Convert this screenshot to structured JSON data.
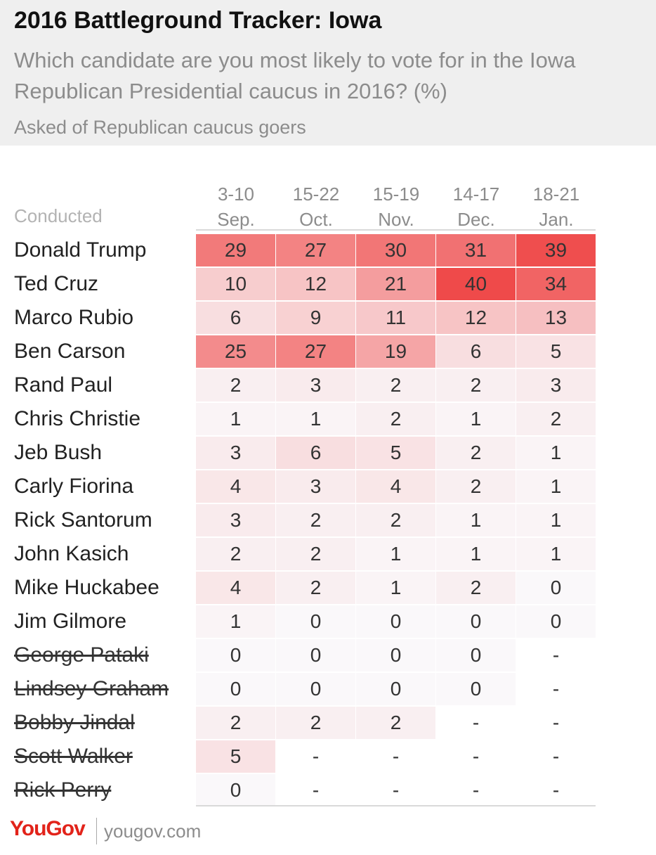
{
  "title": "2016 Battleground Tracker: Iowa",
  "subtitle": "Which candidate are you most likely to vote for in the Iowa Republican Presidential caucus in 2016? (%)",
  "note": "Asked of Republican caucus goers",
  "conducted_label": "Conducted",
  "logo": "YouGov",
  "site": "yougov.com",
  "colors": {
    "heat": "#ef4a4a",
    "header_bg": "#efefef",
    "brand": "#e2231a"
  },
  "chart_data": {
    "type": "heatmap",
    "title": "2016 Battleground Tracker: Iowa",
    "columns": [
      {
        "dates": "3-10",
        "month": "Sep."
      },
      {
        "dates": "15-22",
        "month": "Oct."
      },
      {
        "dates": "15-19",
        "month": "Nov."
      },
      {
        "dates": "14-17",
        "month": "Dec."
      },
      {
        "dates": "18-21",
        "month": "Jan."
      }
    ],
    "rows": [
      {
        "name": "Donald Trump",
        "dropped_out": false,
        "values": [
          29,
          27,
          30,
          31,
          39
        ]
      },
      {
        "name": "Ted Cruz",
        "dropped_out": false,
        "values": [
          10,
          12,
          21,
          40,
          34
        ]
      },
      {
        "name": "Marco Rubio",
        "dropped_out": false,
        "values": [
          6,
          9,
          11,
          12,
          13
        ]
      },
      {
        "name": "Ben Carson",
        "dropped_out": false,
        "values": [
          25,
          27,
          19,
          6,
          5
        ]
      },
      {
        "name": "Rand Paul",
        "dropped_out": false,
        "values": [
          2,
          3,
          2,
          2,
          3
        ]
      },
      {
        "name": "Chris Christie",
        "dropped_out": false,
        "values": [
          1,
          1,
          2,
          1,
          2
        ]
      },
      {
        "name": "Jeb Bush",
        "dropped_out": false,
        "values": [
          3,
          6,
          5,
          2,
          1
        ]
      },
      {
        "name": "Carly Fiorina",
        "dropped_out": false,
        "values": [
          4,
          3,
          4,
          2,
          1
        ]
      },
      {
        "name": "Rick Santorum",
        "dropped_out": false,
        "values": [
          3,
          2,
          2,
          1,
          1
        ]
      },
      {
        "name": "John Kasich",
        "dropped_out": false,
        "values": [
          2,
          2,
          1,
          1,
          1
        ]
      },
      {
        "name": "Mike Huckabee",
        "dropped_out": false,
        "values": [
          4,
          2,
          1,
          2,
          0
        ]
      },
      {
        "name": "Jim Gilmore",
        "dropped_out": false,
        "values": [
          1,
          0,
          0,
          0,
          0
        ]
      },
      {
        "name": "George Pataki",
        "dropped_out": true,
        "values": [
          0,
          0,
          0,
          0,
          "-"
        ]
      },
      {
        "name": "Lindsey Graham",
        "dropped_out": true,
        "values": [
          0,
          0,
          0,
          0,
          "-"
        ]
      },
      {
        "name": "Bobby Jindal",
        "dropped_out": true,
        "values": [
          2,
          2,
          2,
          "-",
          "-"
        ]
      },
      {
        "name": "Scott Walker",
        "dropped_out": true,
        "values": [
          5,
          "-",
          "-",
          "-",
          "-"
        ]
      },
      {
        "name": "Rick Perry",
        "dropped_out": true,
        "values": [
          0,
          "-",
          "-",
          "-",
          "-"
        ]
      }
    ]
  }
}
